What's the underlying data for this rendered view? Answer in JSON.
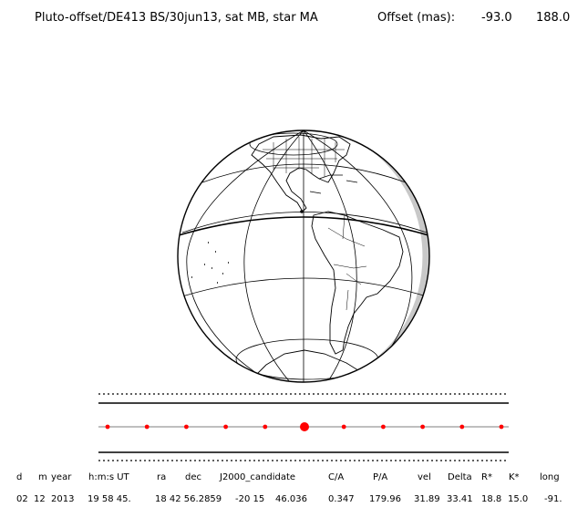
{
  "header": {
    "title": "Pluto-offset/DE413 BS/30jun13, sat MB, star MA",
    "offset_label": "Offset (mas):",
    "offset_x": "-93.0",
    "offset_y": "188.0"
  },
  "globe": {
    "colors": {
      "outline": "#000000",
      "shadow": "#c8c8c8",
      "background": "#ffffff"
    }
  },
  "chord_strip": {
    "point_color": "#ff0000",
    "point_count": 11,
    "highlight_index": 5
  },
  "table": {
    "headers": [
      "d",
      "m",
      "year",
      "h:m:s UT",
      "ra",
      "dec",
      "J2000_candidate",
      "C/A",
      "P/A",
      "vel",
      "Delta",
      "R*",
      "K*",
      "long"
    ],
    "values": [
      "02",
      "12",
      "2013",
      "19 58 45.",
      "18 42 56.2859",
      "-20 15",
      "46.036",
      "0.347",
      "179.96",
      "31.89",
      "33.41",
      "18.8",
      "15.0",
      "-91."
    ]
  }
}
